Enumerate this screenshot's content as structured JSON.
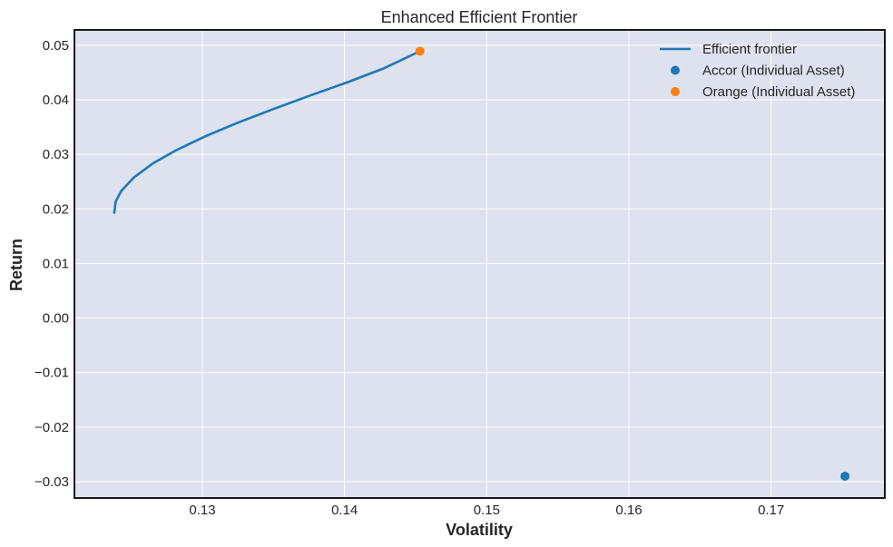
{
  "chart_data": {
    "type": "line",
    "title": "Enhanced Efficient Frontier",
    "xlabel": "Volatility",
    "ylabel": "Return",
    "xlim": [
      0.121,
      0.178
    ],
    "ylim": [
      -0.033,
      0.0528
    ],
    "x_ticks": [
      0.13,
      0.14,
      0.15,
      0.16,
      0.17
    ],
    "x_tick_labels": [
      "0.13",
      "0.14",
      "0.15",
      "0.16",
      "0.17"
    ],
    "y_ticks": [
      0.05,
      0.04,
      0.03,
      0.02,
      0.01,
      0.0,
      -0.01,
      -0.02,
      -0.03
    ],
    "y_tick_labels": [
      "0.05",
      "0.04",
      "0.03",
      "0.02",
      "0.01",
      "0.00",
      "−0.01",
      "−0.02",
      "−0.03"
    ],
    "grid": true,
    "legend_position": "top-right",
    "series": [
      {
        "name": "Efficient frontier",
        "kind": "line",
        "color": "#1f77b4",
        "x": [
          0.1238,
          0.1239,
          0.1243,
          0.1252,
          0.1265,
          0.1282,
          0.1302,
          0.1325,
          0.135,
          0.1376,
          0.1403,
          0.1428,
          0.1453
        ],
        "y": [
          0.0193,
          0.0213,
          0.0233,
          0.0258,
          0.0283,
          0.0308,
          0.0333,
          0.0358,
          0.0383,
          0.0408,
          0.0433,
          0.0458,
          0.0489
        ]
      },
      {
        "name": "Accor (Individual Asset)",
        "kind": "scatter",
        "color": "#1f77b4",
        "x": [
          0.1752
        ],
        "y": [
          -0.029
        ]
      },
      {
        "name": "Orange (Individual Asset)",
        "kind": "scatter",
        "color": "#ff7f0e",
        "x": [
          0.1453
        ],
        "y": [
          0.0489
        ]
      }
    ],
    "colors": {
      "plot_background": "#dde2ee",
      "grid": "#ffffff",
      "axes_border": "#000000",
      "text": "#262626"
    }
  }
}
